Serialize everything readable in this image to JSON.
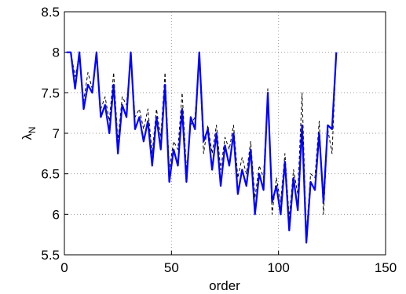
{
  "chart_data": {
    "type": "line",
    "x_label": "order",
    "y_label": "λ",
    "y_label_sub": "N",
    "x": [
      1,
      3,
      5,
      7,
      9,
      11,
      13,
      15,
      17,
      19,
      21,
      23,
      25,
      27,
      29,
      31,
      33,
      35,
      37,
      39,
      41,
      43,
      45,
      47,
      49,
      51,
      53,
      55,
      57,
      59,
      61,
      63,
      65,
      67,
      69,
      71,
      73,
      75,
      77,
      79,
      81,
      83,
      85,
      87,
      89,
      91,
      93,
      95,
      97,
      99,
      101,
      103,
      105,
      107,
      109,
      111,
      113,
      115,
      117,
      119,
      121,
      123,
      125,
      127
    ],
    "series": [
      {
        "color": "#000000",
        "dash": "dashed",
        "values": [
          8,
          8,
          7.7,
          7.95,
          7.4,
          7.75,
          7.55,
          7.95,
          7.3,
          7.45,
          7.15,
          7.75,
          6.9,
          7.45,
          7.35,
          7.95,
          7.2,
          7.3,
          7.05,
          7.3,
          6.75,
          7.3,
          6.95,
          7.75,
          6.55,
          6.9,
          6.8,
          7.5,
          6.55,
          7.1,
          7.2,
          7.95,
          6.75,
          7.1,
          6.75,
          7.1,
          6.55,
          6.95,
          6.8,
          7.1,
          6.45,
          6.7,
          6.5,
          6.9,
          6.2,
          6.6,
          6.45,
          7.55,
          6.0,
          6.45,
          6.15,
          6.75,
          5.95,
          6.55,
          6.25,
          7.5,
          5.75,
          6.5,
          6.45,
          7.15,
          6.0,
          7.05,
          6.75,
          8
        ]
      },
      {
        "color": "#0000ff",
        "dash": "solid",
        "values": [
          8,
          8,
          7.55,
          8,
          7.3,
          7.6,
          7.5,
          8,
          7.2,
          7.35,
          7.0,
          7.6,
          6.75,
          7.35,
          7.2,
          8,
          7.05,
          7.2,
          6.9,
          7.15,
          6.6,
          7.2,
          6.8,
          7.6,
          6.4,
          6.8,
          6.6,
          7.3,
          6.4,
          7.2,
          7.05,
          8,
          6.9,
          7.05,
          6.55,
          7.0,
          6.35,
          6.85,
          6.6,
          7.0,
          6.25,
          6.55,
          6.35,
          6.8,
          6.0,
          6.5,
          6.3,
          7.5,
          6.15,
          6.35,
          6.0,
          6.65,
          5.8,
          6.45,
          6.05,
          7.1,
          5.65,
          6.4,
          6.3,
          7.0,
          6.15,
          7.1,
          7.05,
          8
        ]
      }
    ],
    "xlim": [
      0,
      150
    ],
    "xticks": [
      0,
      50,
      100,
      150
    ],
    "ylim": [
      5.5,
      8.5
    ],
    "yticks": [
      5.5,
      6,
      6.5,
      7,
      7.5,
      8,
      8.5
    ],
    "grid": true
  }
}
